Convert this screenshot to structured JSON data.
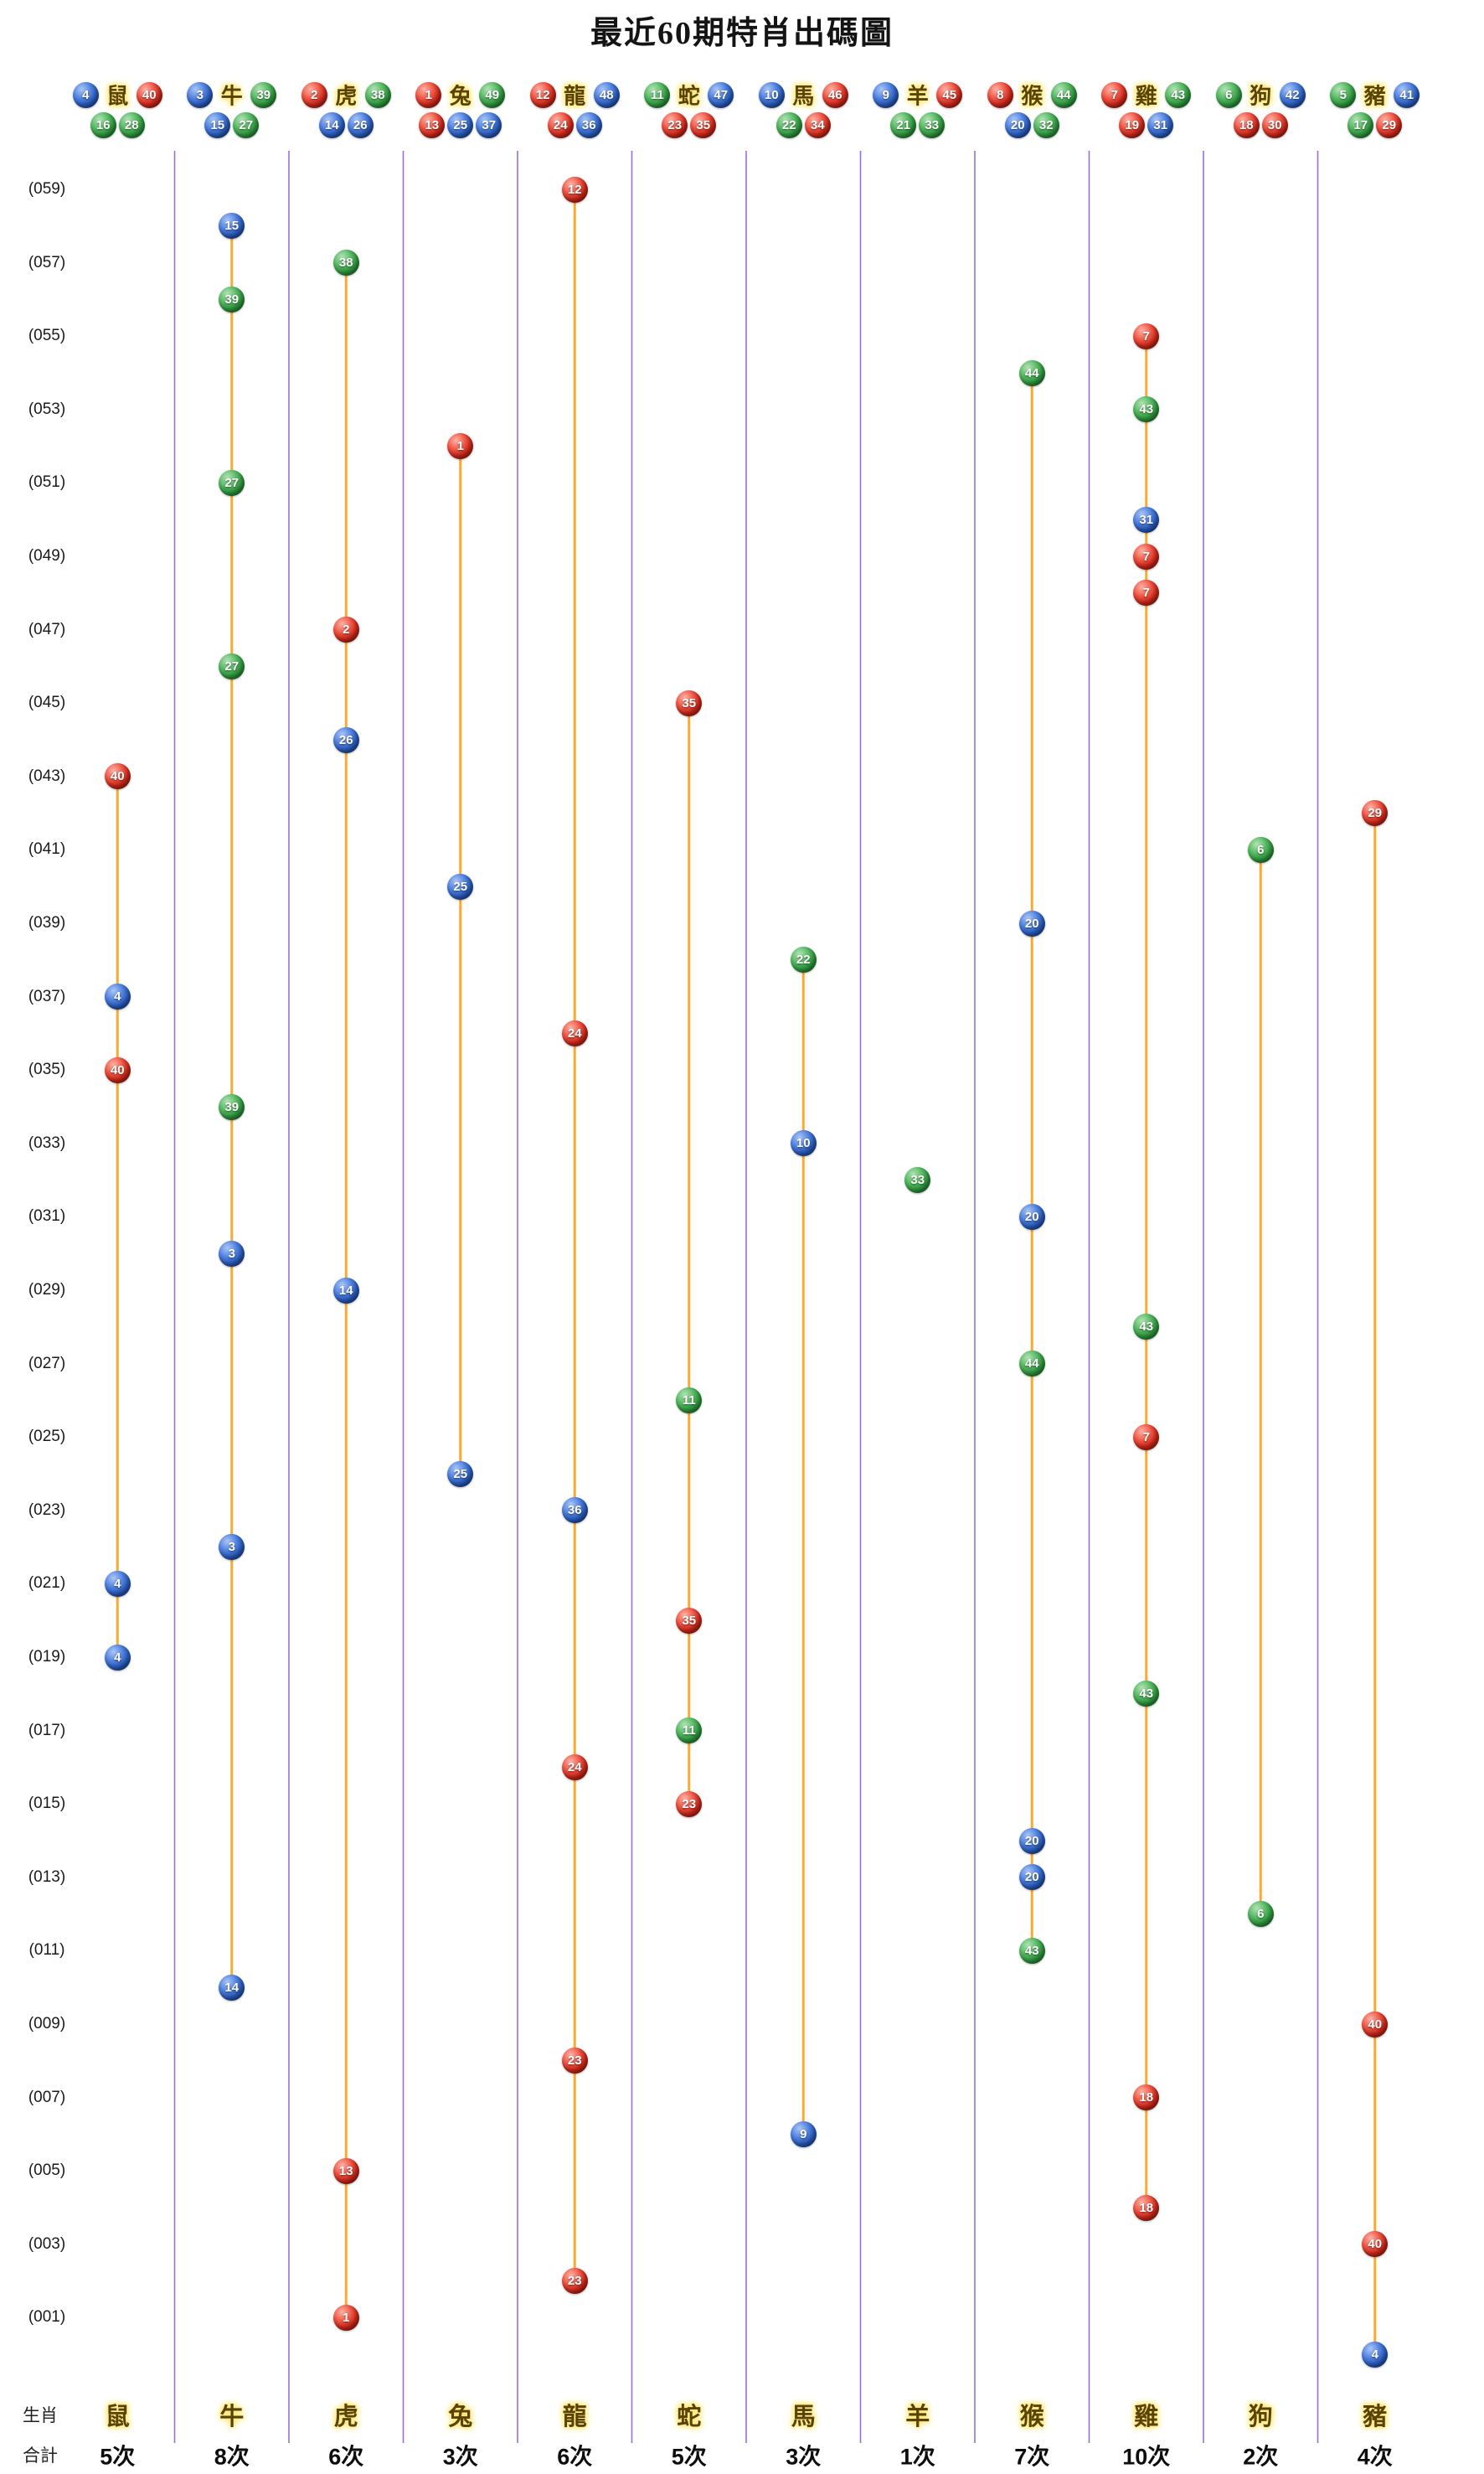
{
  "title": "最近60期特肖出碼圖",
  "axis": {
    "row_labels": [
      "(059)",
      "(057)",
      "(055)",
      "(053)",
      "(051)",
      "(049)",
      "(047)",
      "(045)",
      "(043)",
      "(041)",
      "(039)",
      "(037)",
      "(035)",
      "(033)",
      "(031)",
      "(029)",
      "(027)",
      "(025)",
      "(023)",
      "(021)",
      "(019)",
      "(017)",
      "(015)",
      "(013)",
      "(011)",
      "(009)",
      "(007)",
      "(005)",
      "(003)",
      "(001)"
    ]
  },
  "footer": {
    "row1_caption": "生肖",
    "row2_caption": "合計"
  },
  "palette": {
    "red": "#d5281a",
    "blue": "#2a5fc4",
    "green": "#2f9e3f",
    "line": "#ffa830",
    "separator": "#9a6fd0",
    "title_color": "#141414"
  },
  "ball_colors": {
    "red": [
      1,
      2,
      7,
      8,
      12,
      13,
      18,
      19,
      23,
      24,
      29,
      30,
      34,
      35,
      40,
      45,
      46
    ],
    "blue": [
      3,
      4,
      9,
      10,
      14,
      15,
      20,
      25,
      26,
      31,
      36,
      37,
      41,
      42,
      47,
      48
    ],
    "green": [
      5,
      6,
      11,
      16,
      17,
      21,
      22,
      27,
      28,
      32,
      33,
      38,
      39,
      43,
      44,
      49
    ]
  },
  "chart_data": {
    "type": "scatter",
    "title": "最近60期特肖出碼圖",
    "rows": 60,
    "row_label_step": 2,
    "legend_position": "none",
    "grid": false,
    "columns": [
      {
        "zodiac": "鼠",
        "header_row1": [
          4,
          40
        ],
        "header_row2": [
          16,
          28
        ],
        "total": "5次",
        "points": [
          [
            16,
            40
          ],
          [
            22,
            4
          ],
          [
            24,
            40
          ],
          [
            38,
            4
          ],
          [
            40,
            4
          ]
        ]
      },
      {
        "zodiac": "牛",
        "header_row1": [
          3,
          39
        ],
        "header_row2": [
          15,
          27
        ],
        "total": "8次",
        "points": [
          [
            1,
            15
          ],
          [
            3,
            39
          ],
          [
            8,
            27
          ],
          [
            13,
            27
          ],
          [
            25,
            39
          ],
          [
            29,
            3
          ],
          [
            37,
            3
          ],
          [
            49,
            14
          ]
        ]
      },
      {
        "zodiac": "虎",
        "header_row1": [
          2,
          38
        ],
        "header_row2": [
          14,
          26
        ],
        "total": "6次",
        "points": [
          [
            2,
            38
          ],
          [
            12,
            2
          ],
          [
            15,
            26
          ],
          [
            30,
            14
          ],
          [
            54,
            13
          ],
          [
            58,
            1
          ]
        ]
      },
      {
        "zodiac": "兔",
        "header_row1": [
          1,
          49
        ],
        "header_row2": [
          13,
          25,
          37
        ],
        "total": "3次",
        "points": [
          [
            7,
            1
          ],
          [
            19,
            25
          ],
          [
            35,
            25
          ]
        ]
      },
      {
        "zodiac": "龍",
        "header_row1": [
          12,
          48
        ],
        "header_row2": [
          24,
          36
        ],
        "total": "6次",
        "points": [
          [
            0,
            12
          ],
          [
            23,
            24
          ],
          [
            36,
            36
          ],
          [
            43,
            24
          ],
          [
            51,
            23
          ],
          [
            57,
            23
          ]
        ]
      },
      {
        "zodiac": "蛇",
        "header_row1": [
          11,
          47
        ],
        "header_row2": [
          23,
          35
        ],
        "total": "5次",
        "points": [
          [
            14,
            35
          ],
          [
            33,
            11
          ],
          [
            39,
            35
          ],
          [
            42,
            11
          ],
          [
            44,
            23
          ]
        ]
      },
      {
        "zodiac": "馬",
        "header_row1": [
          10,
          46
        ],
        "header_row2": [
          22,
          34
        ],
        "total": "3次",
        "points": [
          [
            21,
            22
          ],
          [
            26,
            10
          ],
          [
            53,
            9
          ]
        ]
      },
      {
        "zodiac": "羊",
        "header_row1": [
          9,
          45
        ],
        "header_row2": [
          21,
          33
        ],
        "total": "1次",
        "points": [
          [
            27,
            33
          ]
        ]
      },
      {
        "zodiac": "猴",
        "header_row1": [
          8,
          44
        ],
        "header_row2": [
          20,
          32
        ],
        "total": "7次",
        "points": [
          [
            5,
            44
          ],
          [
            20,
            20
          ],
          [
            28,
            20
          ],
          [
            32,
            44
          ],
          [
            45,
            20
          ],
          [
            46,
            20
          ],
          [
            48,
            43
          ]
        ]
      },
      {
        "zodiac": "雞",
        "header_row1": [
          7,
          43
        ],
        "header_row2": [
          19,
          31
        ],
        "total": "10次",
        "points": [
          [
            4,
            7
          ],
          [
            6,
            43
          ],
          [
            9,
            31
          ],
          [
            10,
            7
          ],
          [
            11,
            7
          ],
          [
            31,
            43
          ],
          [
            34,
            7
          ],
          [
            41,
            43
          ],
          [
            52,
            18
          ],
          [
            55,
            18
          ]
        ]
      },
      {
        "zodiac": "狗",
        "header_row1": [
          6,
          42
        ],
        "header_row2": [
          18,
          30
        ],
        "total": "2次",
        "points": [
          [
            18,
            6
          ],
          [
            47,
            6
          ]
        ]
      },
      {
        "zodiac": "豬",
        "header_row1": [
          5,
          41
        ],
        "header_row2": [
          17,
          29
        ],
        "total": "4次",
        "points": [
          [
            17,
            29
          ],
          [
            50,
            40
          ],
          [
            56,
            40
          ],
          [
            59,
            4
          ]
        ]
      }
    ]
  }
}
